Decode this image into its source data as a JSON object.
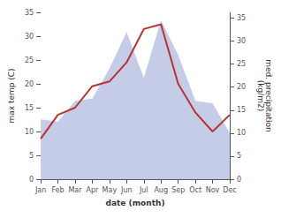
{
  "chart_data": {
    "type": "line",
    "categories": [
      "Jan",
      "Feb",
      "Mar",
      "Apr",
      "May",
      "Jun",
      "Jul",
      "Aug",
      "Sep",
      "Oct",
      "Nov",
      "Dec"
    ],
    "series": [
      {
        "type": "area",
        "axis": "y2",
        "color": "#c5cce8",
        "values": [
          13.0,
          12.5,
          17.0,
          17.5,
          24.0,
          32.0,
          22.0,
          34.5,
          27.0,
          17.0,
          16.5,
          10.0
        ]
      },
      {
        "type": "line",
        "color": "#b83232",
        "values": [
          8.5,
          13.5,
          15.0,
          19.5,
          20.5,
          24.5,
          31.5,
          32.5,
          20.0,
          14.0,
          10.0,
          13.5
        ]
      }
    ],
    "xlabel": "date (month)",
    "ylabel": "max temp (C)",
    "y2label": "med. precipitation\n(kg/m2)",
    "ylim": [
      0,
      35
    ],
    "yticks": [
      0,
      5,
      10,
      15,
      20,
      25,
      30,
      35
    ],
    "y2lim": [
      0,
      36.25
    ],
    "y2ticks": [
      0,
      5,
      10,
      15,
      20,
      25,
      30,
      35
    ],
    "grid": false
  }
}
